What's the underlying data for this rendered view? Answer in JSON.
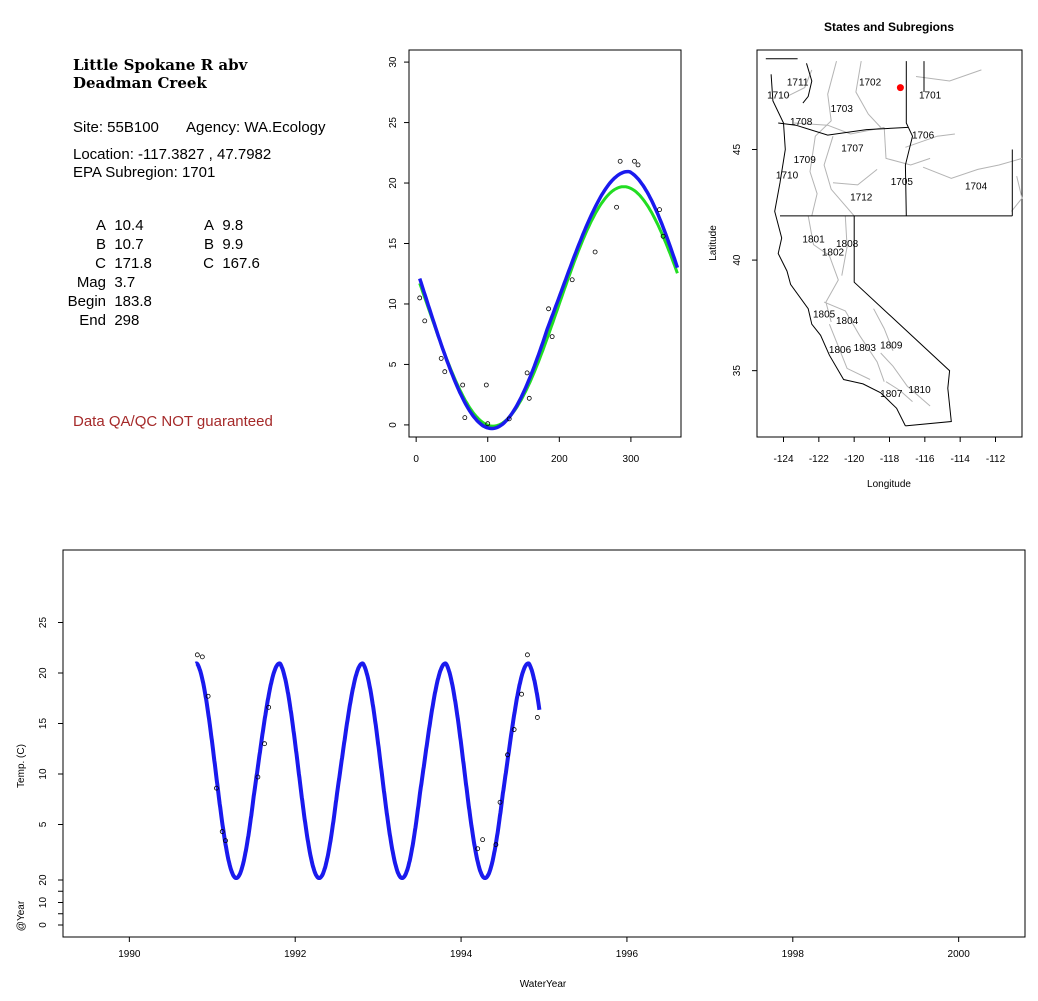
{
  "info": {
    "title_line1": "Little Spokane R abv",
    "title_line2": "Deadman Creek",
    "site_label": "Site: 55B100",
    "agency_label": "Agency: WA.Ecology",
    "location_label": "Location: -117.3827 , 47.7982",
    "subregion_label": "EPA Subregion: 1701",
    "params_left": [
      {
        "label": "A",
        "value": "10.4"
      },
      {
        "label": "B",
        "value": "10.7"
      },
      {
        "label": "C",
        "value": "171.8"
      },
      {
        "label": "Mag",
        "value": "3.7"
      },
      {
        "label": "Begin",
        "value": "183.8"
      },
      {
        "label": "End",
        "value": "298"
      }
    ],
    "params_right": [
      {
        "label": "A",
        "value": "9.8"
      },
      {
        "label": "B",
        "value": "9.9"
      },
      {
        "label": "C",
        "value": "167.6"
      }
    ],
    "qa_note": "Data QA/QC NOT guaranteed",
    "qa_color": "#a52a2a"
  },
  "chart_data": [
    {
      "type": "scatter",
      "id": "seasonal",
      "xlim": [
        -10,
        370
      ],
      "ylim": [
        -1,
        31
      ],
      "xticks": [
        0,
        100,
        200,
        300
      ],
      "yticks": [
        0,
        5,
        10,
        15,
        20,
        25,
        30
      ],
      "xlabel": "",
      "ylabel": "",
      "points": [
        [
          5,
          10.5
        ],
        [
          12,
          8.6
        ],
        [
          35,
          5.5
        ],
        [
          40,
          4.4
        ],
        [
          65,
          3.3
        ],
        [
          68,
          0.6
        ],
        [
          98,
          3.3
        ],
        [
          100,
          0.1
        ],
        [
          130,
          0.5
        ],
        [
          155,
          4.3
        ],
        [
          158,
          2.2
        ],
        [
          185,
          9.6
        ],
        [
          190,
          7.3
        ],
        [
          218,
          12.0
        ],
        [
          250,
          14.3
        ],
        [
          280,
          18.0
        ],
        [
          285,
          21.8
        ],
        [
          305,
          21.8
        ],
        [
          310,
          21.5
        ],
        [
          340,
          17.8
        ],
        [
          345,
          15.6
        ]
      ],
      "series": [
        {
          "color": "#22dd22",
          "model": {
            "mean": 9.8,
            "amp": 9.9,
            "peak_day": 290
          }
        },
        {
          "color": "#1a1aee",
          "model": {
            "mean": 10.4,
            "amp": 10.7,
            "peak_day": 288,
            "summer_mag": 3.7,
            "summer_begin": 183.8,
            "summer_end": 298
          }
        }
      ],
      "curve_x": [
        5,
        365
      ]
    },
    {
      "type": "line",
      "id": "map",
      "title": "States and Subregions",
      "xlabel": "Longitude",
      "ylabel": "Latitude",
      "xlim": [
        -125.5,
        -110.5
      ],
      "ylim": [
        32,
        49.5
      ],
      "xticks": [
        -124,
        -122,
        -120,
        -118,
        -116,
        -114,
        -112
      ],
      "yticks": [
        35,
        40,
        45
      ],
      "site": {
        "lon": -117.3827,
        "lat": 47.7982,
        "color": "#ff0000"
      },
      "region_labels": [
        {
          "text": "1702",
          "lon": -119.1,
          "lat": 47.9
        },
        {
          "text": "1701",
          "lon": -115.7,
          "lat": 47.3
        },
        {
          "text": "1711",
          "lon": -123.2,
          "lat": 47.9
        },
        {
          "text": "1710",
          "lon": -124.3,
          "lat": 47.3
        },
        {
          "text": "1703",
          "lon": -120.7,
          "lat": 46.7
        },
        {
          "text": "1708",
          "lon": -123.0,
          "lat": 46.1
        },
        {
          "text": "1706",
          "lon": -116.1,
          "lat": 45.5
        },
        {
          "text": "1707",
          "lon": -120.1,
          "lat": 44.9
        },
        {
          "text": "1709",
          "lon": -122.8,
          "lat": 44.4
        },
        {
          "text": "1710",
          "lon": -123.8,
          "lat": 43.7
        },
        {
          "text": "1705",
          "lon": -117.3,
          "lat": 43.4
        },
        {
          "text": "1704",
          "lon": -113.1,
          "lat": 43.2
        },
        {
          "text": "1712",
          "lon": -119.6,
          "lat": 42.7
        },
        {
          "text": "1801",
          "lon": -122.3,
          "lat": 40.8
        },
        {
          "text": "1808",
          "lon": -120.4,
          "lat": 40.6
        },
        {
          "text": "1802",
          "lon": -121.2,
          "lat": 40.2
        },
        {
          "text": "1805",
          "lon": -121.7,
          "lat": 37.4
        },
        {
          "text": "1804",
          "lon": -120.4,
          "lat": 37.1
        },
        {
          "text": "1809",
          "lon": -117.9,
          "lat": 36.0
        },
        {
          "text": "1806",
          "lon": -120.8,
          "lat": 35.8
        },
        {
          "text": "1803",
          "lon": -119.4,
          "lat": 35.9
        },
        {
          "text": "1810",
          "lon": -116.3,
          "lat": 34.0
        },
        {
          "text": "1807",
          "lon": -117.9,
          "lat": 33.8
        }
      ]
    },
    {
      "type": "line",
      "id": "timeseries",
      "xlabel": "WaterYear",
      "ylabel": "Temp. (C)",
      "ylabel2": "@Year",
      "xlim": [
        1989.2,
        2000.8
      ],
      "ylim": [
        0,
        30
      ],
      "xticks": [
        1990,
        1992,
        1994,
        1996,
        1998,
        2000
      ],
      "yticks": [
        5,
        10,
        15,
        20,
        25
      ],
      "yticks2": [
        0,
        10,
        20
      ],
      "curve_range": [
        1990.8,
        1994.95
      ],
      "points": [
        [
          1990.82,
          21.8
        ],
        [
          1990.88,
          21.6
        ],
        [
          1990.95,
          17.7
        ],
        [
          1991.05,
          8.6
        ],
        [
          1991.12,
          4.3
        ],
        [
          1991.16,
          3.4
        ],
        [
          1991.55,
          9.7
        ],
        [
          1991.63,
          13.0
        ],
        [
          1991.68,
          16.6
        ],
        [
          1994.2,
          2.6
        ],
        [
          1994.26,
          3.5
        ],
        [
          1994.42,
          3.0
        ],
        [
          1994.47,
          7.2
        ],
        [
          1994.56,
          11.9
        ],
        [
          1994.64,
          14.4
        ],
        [
          1994.73,
          17.9
        ],
        [
          1994.8,
          21.8
        ],
        [
          1994.92,
          15.6
        ]
      ],
      "color": "#1a1aee"
    }
  ]
}
